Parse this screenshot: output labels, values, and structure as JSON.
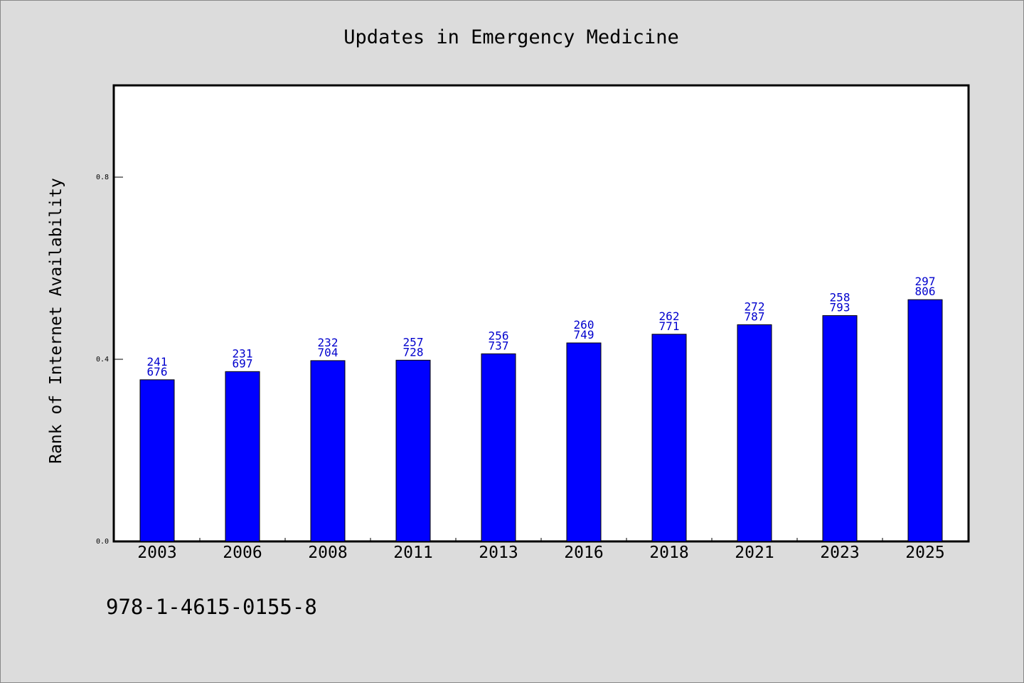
{
  "chart_data": {
    "type": "bar",
    "title": "Updates in Emergency Medicine",
    "xlabel": "",
    "ylabel": "Rank of Internet Availability",
    "categories": [
      "2003",
      "2006",
      "2008",
      "2011",
      "2013",
      "2016",
      "2018",
      "2021",
      "2023",
      "2025"
    ],
    "values": [
      0.355,
      0.373,
      0.397,
      0.398,
      0.412,
      0.436,
      0.455,
      0.476,
      0.496,
      0.531
    ],
    "data_labels": [
      [
        "241",
        "676"
      ],
      [
        "231",
        "697"
      ],
      [
        "232",
        "704"
      ],
      [
        "257",
        "728"
      ],
      [
        "256",
        "737"
      ],
      [
        "260",
        "749"
      ],
      [
        "262",
        "771"
      ],
      [
        "272",
        "787"
      ],
      [
        "258",
        "793"
      ],
      [
        "297",
        "806"
      ]
    ],
    "ylim": [
      0,
      1.0
    ],
    "yticks": [
      0.0,
      0.4,
      0.8
    ],
    "ytick_labels": [
      "0.0",
      "0.4",
      "0.8"
    ],
    "grid": false,
    "legend": "none",
    "bar_color": "#0000ff",
    "label_color": "#0000cd"
  },
  "footer": {
    "isbn": "978-1-4615-0155-8"
  },
  "colors": {
    "background": "#dcdcdc",
    "plot_area": "#ffffff",
    "axes": "#000000"
  }
}
